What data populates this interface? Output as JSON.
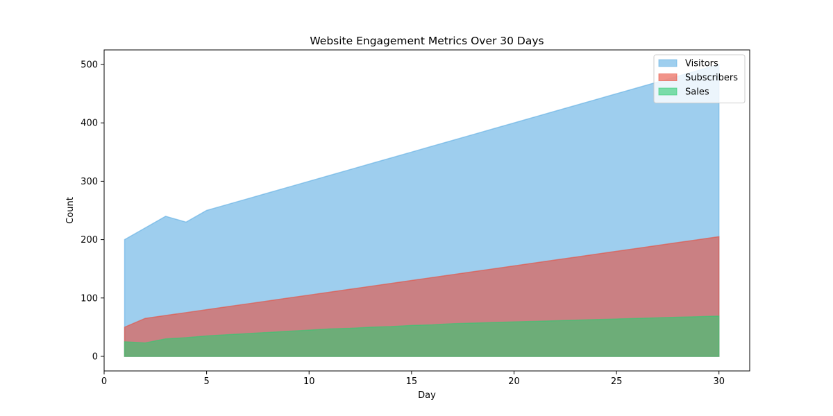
{
  "chart_data": {
    "type": "area",
    "title": "Website Engagement Metrics Over 30 Days",
    "xlabel": "Day",
    "ylabel": "Count",
    "xlim": [
      0,
      31.5
    ],
    "ylim": [
      -25,
      525
    ],
    "xticks": [
      0,
      5,
      10,
      15,
      20,
      25,
      30
    ],
    "yticks": [
      0,
      100,
      200,
      300,
      400,
      500
    ],
    "grid": false,
    "legend_position": "top-right",
    "x": [
      1,
      2,
      3,
      4,
      5,
      6,
      7,
      8,
      9,
      10,
      11,
      12,
      13,
      14,
      15,
      16,
      17,
      18,
      19,
      20,
      21,
      22,
      23,
      24,
      25,
      26,
      27,
      28,
      29,
      30
    ],
    "series": [
      {
        "name": "Visitors",
        "color": "#5dade2",
        "values": [
          200,
          220,
          240,
          230,
          250,
          260,
          270,
          280,
          290,
          300,
          310,
          320,
          330,
          340,
          350,
          360,
          370,
          380,
          390,
          400,
          410,
          420,
          430,
          440,
          450,
          460,
          470,
          480,
          490,
          500
        ]
      },
      {
        "name": "Subscribers",
        "color": "#e74c3c",
        "values": [
          50,
          65,
          70,
          75,
          80,
          85,
          90,
          95,
          100,
          105,
          110,
          115,
          120,
          125,
          130,
          135,
          140,
          145,
          150,
          155,
          160,
          165,
          170,
          175,
          180,
          185,
          190,
          195,
          200,
          205
        ]
      },
      {
        "name": "Sales",
        "color": "#2ecc71",
        "values": [
          25,
          23,
          30,
          32,
          35,
          37,
          39,
          41,
          43,
          45,
          47,
          48,
          50,
          51,
          53,
          54,
          56,
          57,
          58,
          59,
          60,
          61,
          62,
          63,
          64,
          65,
          66,
          67,
          68,
          69
        ]
      }
    ]
  }
}
